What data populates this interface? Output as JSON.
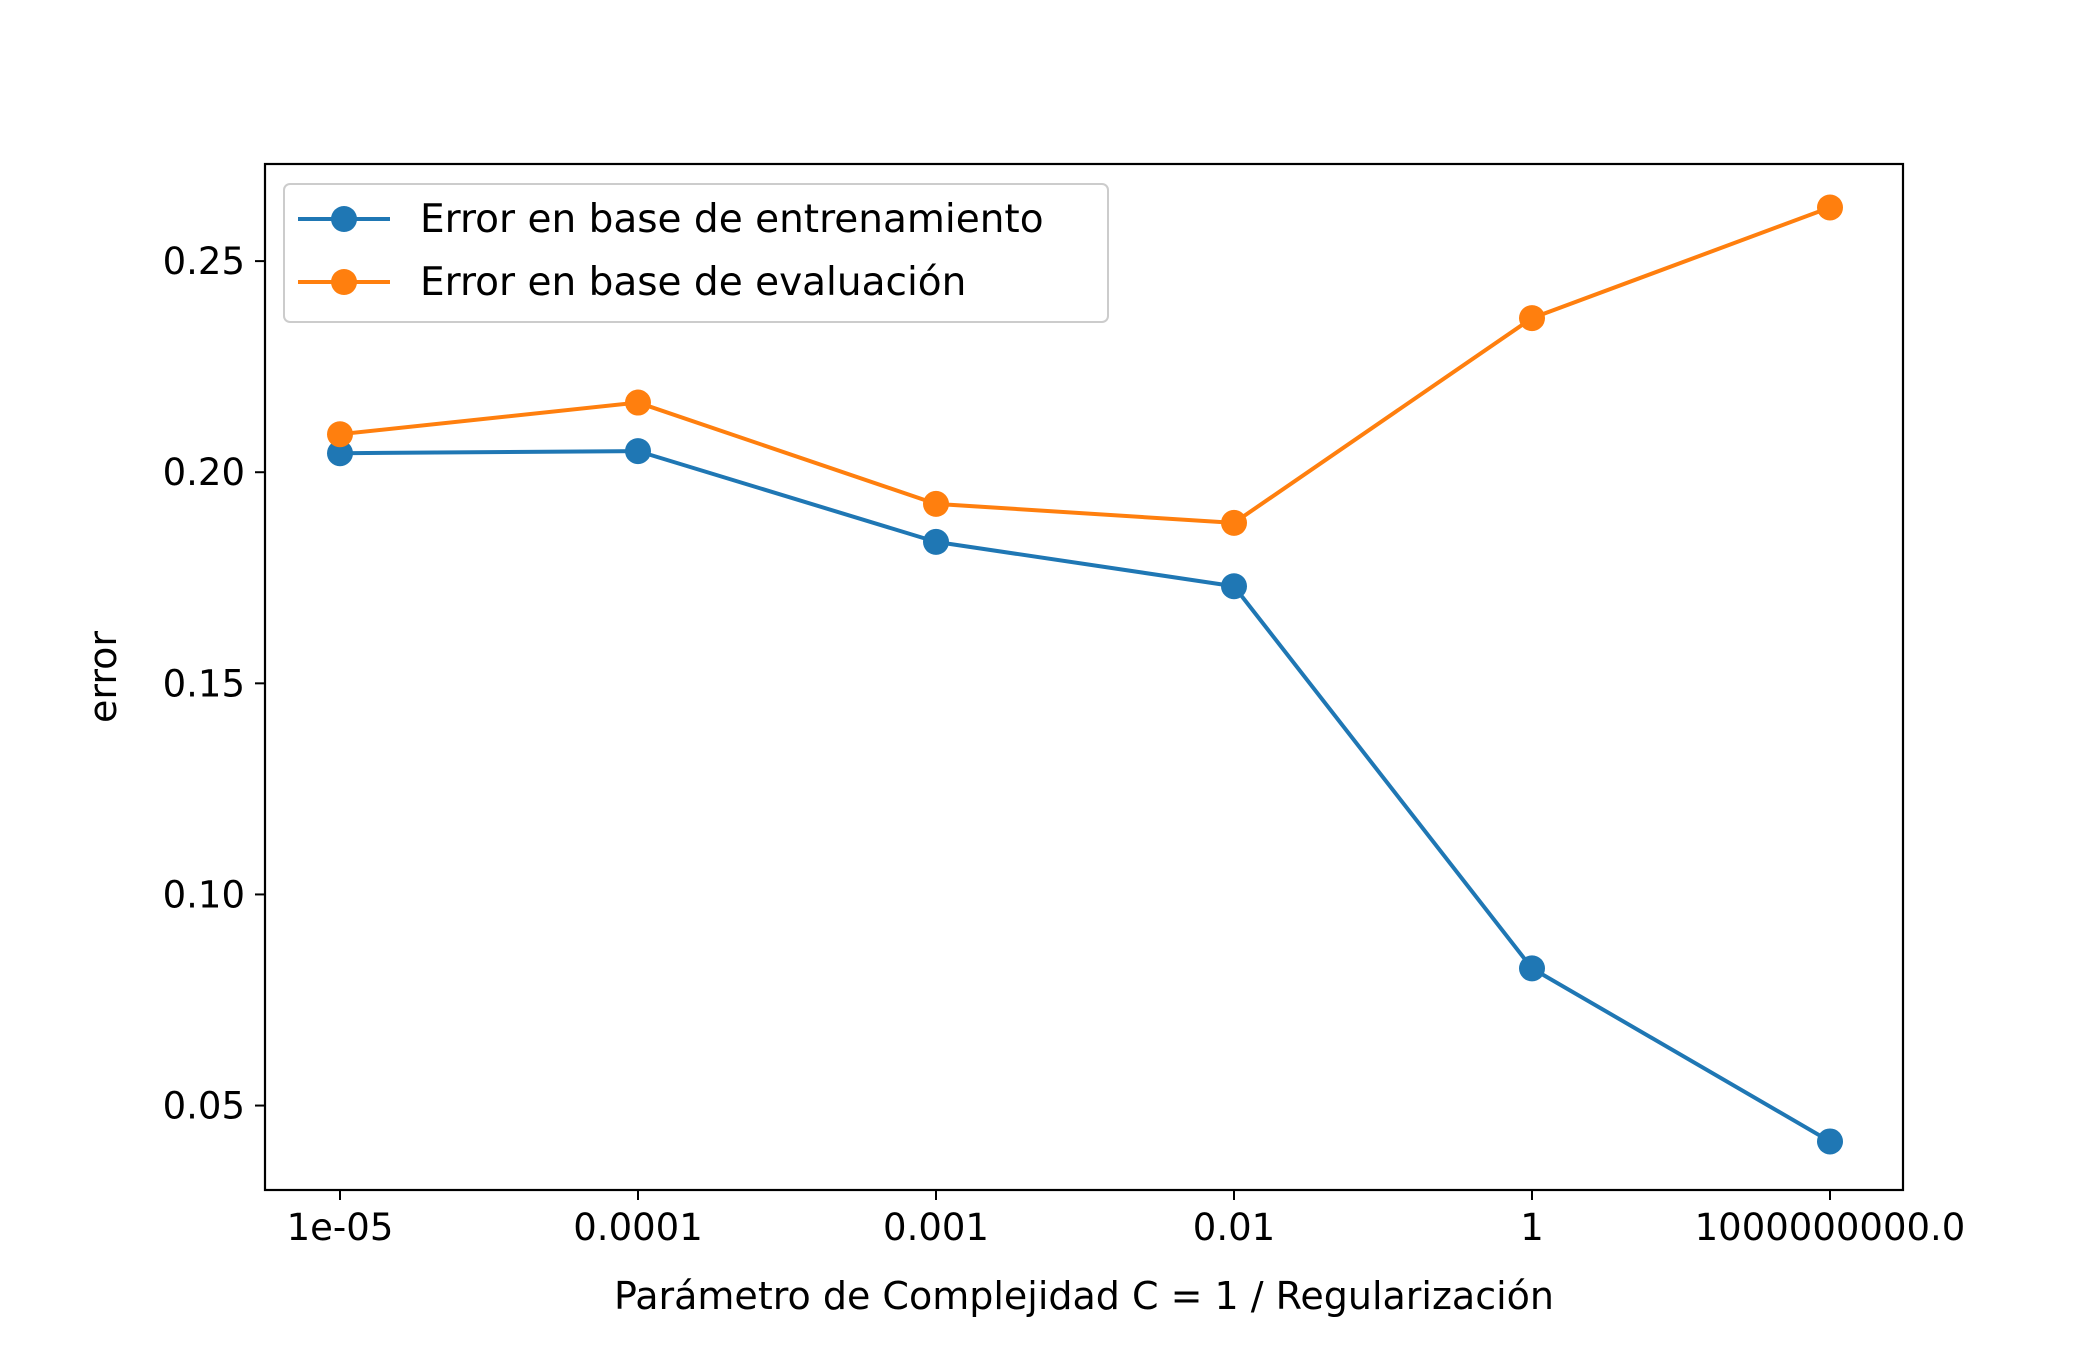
{
  "chart_data": {
    "type": "line",
    "title": "",
    "xlabel": "Parámetro de Complejidad C  = 1 / Regularización",
    "ylabel": "error",
    "categories": [
      "1e-05",
      "0.0001",
      "0.001",
      "0.01",
      "1",
      "1000000000.0"
    ],
    "ylim": [
      0.03,
      0.273
    ],
    "yticks": [
      0.05,
      0.1,
      0.15,
      0.2,
      0.25
    ],
    "ytick_labels": [
      "0.05",
      "0.10",
      "0.15",
      "0.20",
      "0.25"
    ],
    "grid": false,
    "legend_position": "top-left",
    "series": [
      {
        "name": "Error en base de entrenamiento",
        "color": "#1f77b4",
        "marker": "circle",
        "values": [
          0.2045,
          0.205,
          0.1835,
          0.173,
          0.0825,
          0.0415
        ]
      },
      {
        "name": "Error en base de evaluación",
        "color": "#ff7f0e",
        "marker": "circle",
        "values": [
          0.209,
          0.2165,
          0.1925,
          0.188,
          0.2365,
          0.2627
        ]
      }
    ]
  }
}
